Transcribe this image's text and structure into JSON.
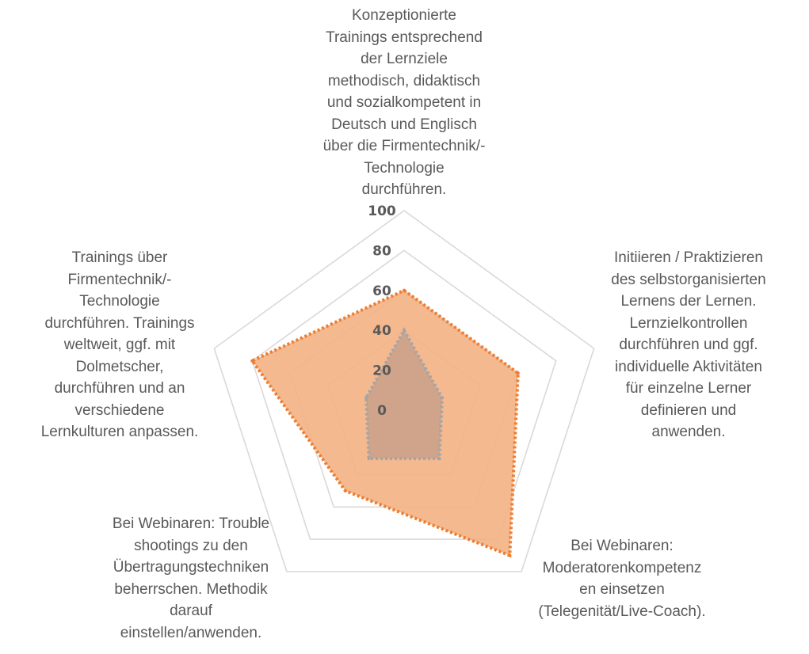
{
  "chart_data": {
    "type": "radar",
    "categories": [
      "Konzeptionierte\nTrainings entsprechend\nder Lernziele\nmethodisch, didaktisch\nund sozialkompetent in\nDeutsch und Englisch\nüber die Firmentechnik/-\nTechnologie\ndurchführen.",
      "Initiieren / Praktizieren\ndes selbstorganisierten\nLernens der Lernen.\nLernzielkontrollen\ndurchführen und ggf.\nindividuelle Aktivitäten\nfür einzelne Lerner\ndefinieren und\nanwenden.",
      "Bei Webinaren:\nModeratorenkompetenz\nen einsetzen\n(Telegenität/Live-Coach).",
      "Bei Webinaren: Trouble\nshootings zu den\nÜbertragungstechniken\nbeherrschen. Methodik\ndarauf\neinstellen/anwenden.",
      "Trainings über\nFirmentechnik/-\nTechnologie\ndurchführen. Trainings\nweltweit, ggf. mit\nDolmetscher,\ndurchführen und an\nverschiedene\nLernkulturen anpassen."
    ],
    "series": [
      {
        "values": [
          60,
          60,
          90,
          50,
          80
        ],
        "color": "#ED7D31",
        "fill": "#F4B183"
      },
      {
        "values": [
          40,
          20,
          30,
          30,
          20
        ],
        "color": "#A5A5A5",
        "fill": "#C9A08A"
      }
    ],
    "rlim": [
      0,
      100
    ],
    "ticks": [
      "0",
      "20",
      "40",
      "60",
      "80",
      "100"
    ],
    "tick_values": [
      0,
      20,
      40,
      60,
      80,
      100
    ],
    "grid": true,
    "grid_color": "#D9D9D9"
  }
}
